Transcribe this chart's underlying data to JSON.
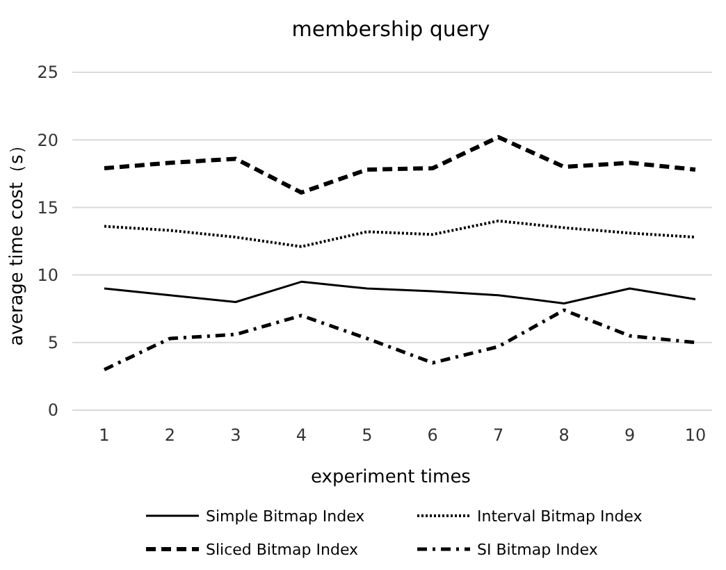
{
  "chart_data": {
    "type": "line",
    "title": "membership query",
    "xlabel": "experiment times",
    "ylabel": "average time cost（s）",
    "categories": [
      "1",
      "2",
      "3",
      "4",
      "5",
      "6",
      "7",
      "8",
      "9",
      "10"
    ],
    "ylim": [
      0,
      25
    ],
    "yticks": [
      0,
      5,
      10,
      15,
      20,
      25
    ],
    "grid": "y",
    "legend": "bottom",
    "marker": "none",
    "series": [
      {
        "name": "Simple Bitmap Index",
        "color": "#000000",
        "line_style": "solid",
        "values": [
          9,
          8.5,
          8,
          9.5,
          9,
          8.8,
          8.5,
          7.9,
          9,
          8.2
        ]
      },
      {
        "name": "Interval Bitmap Index",
        "color": "#000000",
        "line_style": "dotted",
        "values": [
          13.6,
          13.3,
          12.8,
          12.1,
          13.2,
          13,
          14,
          13.5,
          13.1,
          12.8
        ]
      },
      {
        "name": "Sliced Bitmap Index",
        "color": "#000000",
        "line_style": "dashed",
        "values": [
          17.9,
          18.3,
          18.6,
          16.1,
          17.8,
          17.9,
          20.2,
          18,
          18.3,
          17.8
        ]
      },
      {
        "name": "SI Bitmap Index",
        "color": "#000000",
        "line_style": "dashdot",
        "values": [
          3,
          5.3,
          5.6,
          7,
          5.3,
          3.5,
          4.7,
          7.4,
          5.5,
          5
        ]
      }
    ]
  }
}
